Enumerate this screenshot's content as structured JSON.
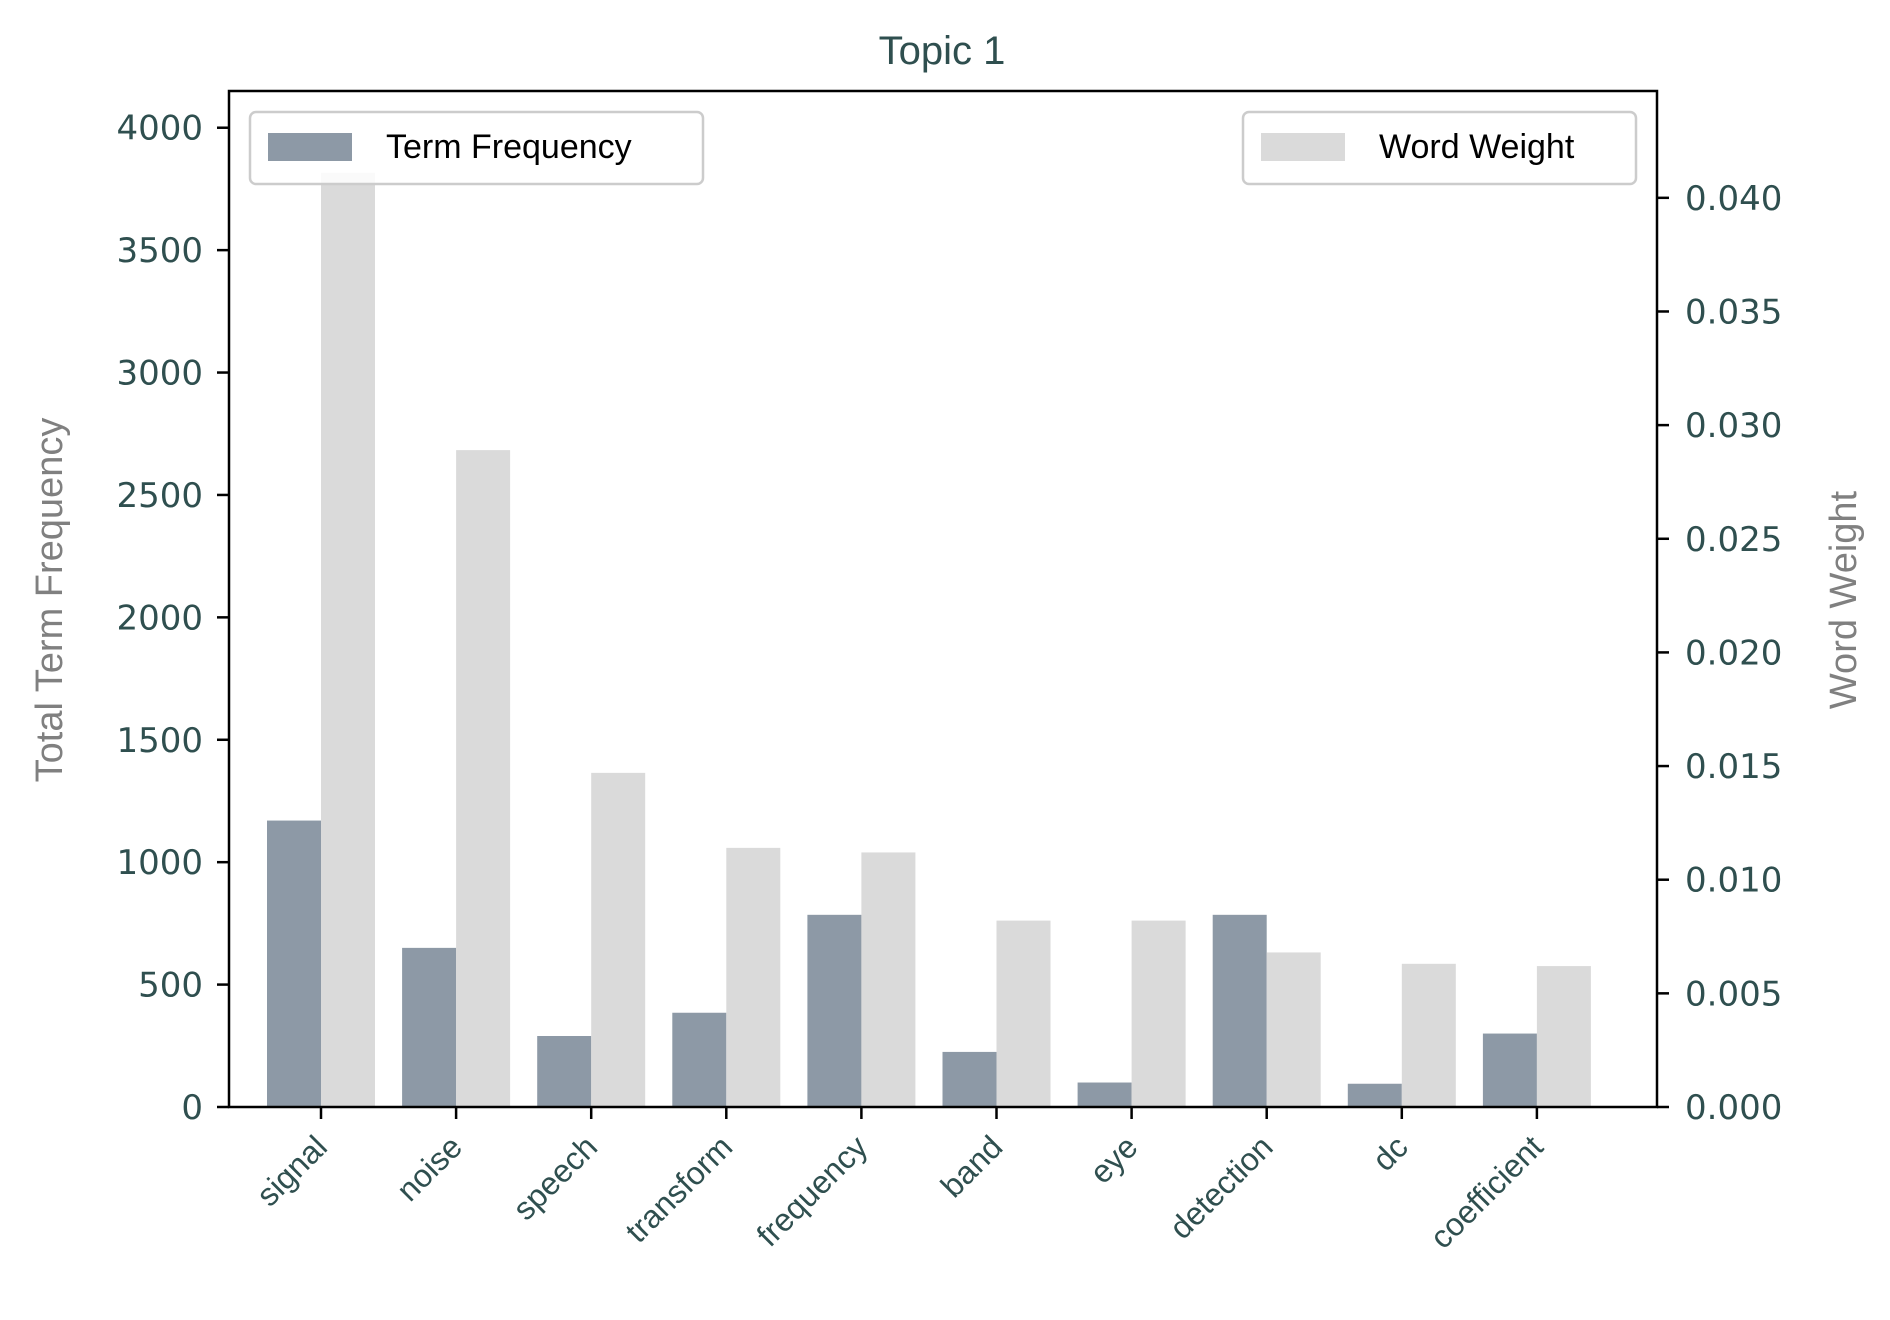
{
  "chart_data": {
    "type": "bar",
    "title": "Topic 1",
    "categories": [
      "signal",
      "noise",
      "speech",
      "transform",
      "frequency",
      "band",
      "eye",
      "detection",
      "dc",
      "coefficient"
    ],
    "series": [
      {
        "name": "Term Frequency",
        "axis": "left",
        "color": "#708090",
        "values": [
          1170,
          650,
          290,
          385,
          785,
          225,
          100,
          785,
          95,
          300
        ]
      },
      {
        "name": "Word Weight",
        "axis": "right",
        "color": "#d3d3d3",
        "values": [
          0.0411,
          0.0289,
          0.0147,
          0.0114,
          0.0112,
          0.0082,
          0.0082,
          0.0068,
          0.0063,
          0.0062
        ]
      }
    ],
    "ylabel_left": "Total Term Frequency",
    "ylabel_right": "Word Weight",
    "ylim_left": [
      0,
      4150
    ],
    "ylim_right": [
      0,
      0.0447
    ],
    "yticks_left": [
      "0",
      "500",
      "1000",
      "1500",
      "2000",
      "2500",
      "3000",
      "3500",
      "4000"
    ],
    "yticks_right": [
      "0.000",
      "0.005",
      "0.010",
      "0.015",
      "0.020",
      "0.025",
      "0.030",
      "0.035",
      "0.040"
    ],
    "legend_left_position": "top-left",
    "legend_right_position": "top-right",
    "grid": false
  }
}
